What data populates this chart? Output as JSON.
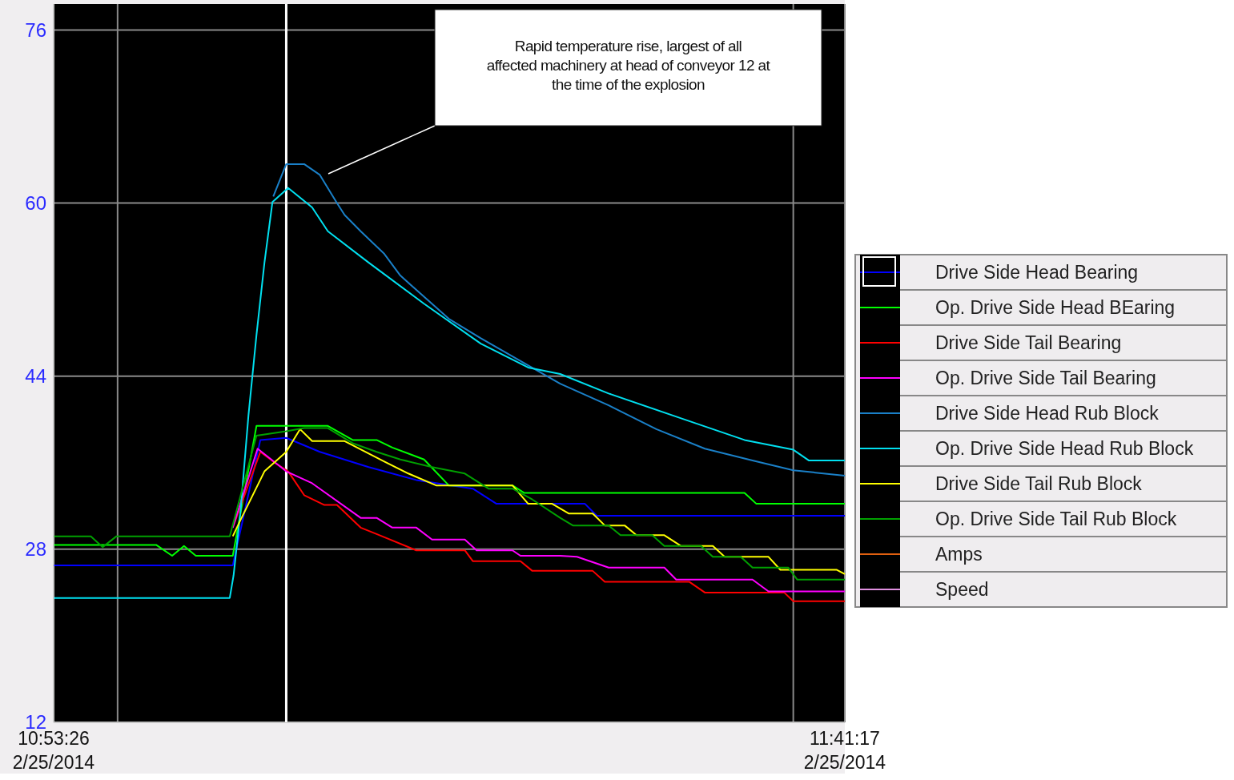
{
  "chart_data": {
    "type": "line",
    "annotations": [
      "Rapid temperature rise, largest of all affected machinery at head of conveyor 12 at the time of the explosion"
    ],
    "xlim": [
      "2014-02-25T10:53:26",
      "2014-02-25T11:41:17"
    ],
    "xticks": [
      {
        "value": "2014-02-25T10:53:26",
        "label": "10:53:26\n2/25/2014"
      },
      {
        "value": "2014-02-25T10:57:18",
        "label": null
      },
      {
        "value": "2014-02-25T11:38:10",
        "label": null
      },
      {
        "value": "2014-02-25T11:41:17",
        "label": "11:41:17\n2/25/2014"
      }
    ],
    "ylim": [
      12,
      78.4
    ],
    "yticks": [
      12,
      28,
      44,
      60,
      76
    ],
    "grid": true,
    "legend": "right",
    "line_style": "solid",
    "marker": "none",
    "ref_lines": [
      {
        "axis": "x",
        "value": "2014-02-25T11:07:30",
        "label": null,
        "color": "#ffffff"
      }
    ],
    "series": [
      {
        "name": "Drive Side Head Bearing",
        "color": "#0000ff",
        "x": [
          "2014-02-25T10:53:26",
          "2014-02-25T11:04:16",
          "2014-02-25T11:05:56",
          "2014-02-25T11:07:30",
          "2014-02-25T11:09:32",
          "2014-02-25T11:12:29",
          "2014-02-25T11:15:22",
          "2014-02-25T11:18:47",
          "2014-02-25T11:20:13",
          "2014-02-25T11:25:34",
          "2014-02-25T11:26:17",
          "2014-02-25T11:41:17"
        ],
        "values": [
          26.5,
          26.5,
          38.1,
          38.3,
          37.0,
          35.6,
          34.4,
          33.6,
          32.2,
          32.2,
          31.1,
          31.1
        ]
      },
      {
        "name": "Op. Drive Side Head BEaring",
        "color": "#00ff00",
        "x": [
          "2014-02-25T10:53:26",
          "2014-02-25T10:59:38",
          "2014-02-25T11:00:36",
          "2014-02-25T11:01:19",
          "2014-02-25T11:02:02",
          "2014-02-25T11:04:16",
          "2014-02-25T11:05:42",
          "2014-02-25T11:10:01",
          "2014-02-25T11:11:31",
          "2014-02-25T11:12:58",
          "2014-02-25T11:13:55",
          "2014-02-25T11:15:50",
          "2014-02-25T11:17:20",
          "2014-02-25T11:21:11",
          "2014-02-25T11:21:54",
          "2014-02-25T11:35:13",
          "2014-02-25T11:35:56",
          "2014-02-25T11:41:17"
        ],
        "values": [
          28.4,
          28.4,
          27.4,
          28.3,
          27.4,
          27.4,
          39.4,
          39.4,
          38.1,
          38.1,
          37.4,
          36.3,
          33.9,
          33.9,
          33.2,
          33.2,
          32.2,
          32.2
        ]
      },
      {
        "name": "Drive Side Tail Bearing",
        "color": "#ff0000",
        "x": [
          "2014-02-25T11:04:16",
          "2014-02-25T11:05:56",
          "2014-02-25T11:06:54",
          "2014-02-25T11:07:37",
          "2014-02-25T11:08:35",
          "2014-02-25T11:09:47",
          "2014-02-25T11:10:34",
          "2014-02-25T11:12:00",
          "2014-02-25T11:12:58",
          "2014-02-25T11:15:22",
          "2014-02-25T11:18:18",
          "2014-02-25T11:18:47",
          "2014-02-25T11:21:40",
          "2014-02-25T11:22:23",
          "2014-02-25T11:26:02",
          "2014-02-25T11:26:46",
          "2014-02-25T11:31:52",
          "2014-02-25T11:32:49",
          "2014-02-25T11:37:37",
          "2014-02-25T11:38:10",
          "2014-02-25T11:41:17"
        ],
        "values": [
          30.0,
          37.0,
          35.9,
          35.2,
          33.0,
          32.1,
          32.1,
          30.0,
          29.4,
          27.9,
          27.9,
          26.9,
          26.9,
          26.0,
          26.0,
          25.0,
          25.0,
          24.0,
          24.0,
          23.2,
          23.2
        ]
      },
      {
        "name": "Op. Drive Side Tail Bearing",
        "color": "#ff00ff",
        "x": [
          "2014-02-25T11:04:16",
          "2014-02-25T11:05:46",
          "2014-02-25T11:07:30",
          "2014-02-25T11:09:04",
          "2014-02-25T11:12:00",
          "2014-02-25T11:12:58",
          "2014-02-25T11:13:55",
          "2014-02-25T11:15:22",
          "2014-02-25T11:16:19",
          "2014-02-25T11:18:18",
          "2014-02-25T11:19:01",
          "2014-02-25T11:21:11",
          "2014-02-25T11:21:40",
          "2014-02-25T11:24:04",
          "2014-02-25T11:25:05",
          "2014-02-25T11:27:00",
          "2014-02-25T11:30:22",
          "2014-02-25T11:31:05",
          "2014-02-25T11:35:42",
          "2014-02-25T11:36:40",
          "2014-02-25T11:41:17"
        ],
        "values": [
          30.0,
          37.3,
          35.2,
          34.1,
          30.9,
          30.9,
          30.0,
          30.0,
          28.9,
          28.9,
          27.9,
          27.9,
          27.4,
          27.4,
          27.3,
          26.3,
          26.3,
          25.2,
          25.2,
          24.1,
          24.1
        ]
      },
      {
        "name": "Drive Side Head Rub Block",
        "color": "#1a80c8",
        "x": [
          "2014-02-25T11:06:43",
          "2014-02-25T11:07:30",
          "2014-02-25T11:08:35",
          "2014-02-25T11:09:32",
          "2014-02-25T11:10:34",
          "2014-02-25T11:11:02",
          "2014-02-25T11:12:00",
          "2014-02-25T11:13:26",
          "2014-02-25T11:14:24",
          "2014-02-25T11:17:20",
          "2014-02-25T11:19:16",
          "2014-02-25T11:24:04",
          "2014-02-25T11:27:00",
          "2014-02-25T11:29:53",
          "2014-02-25T11:32:49",
          "2014-02-25T11:35:42",
          "2014-02-25T11:38:10",
          "2014-02-25T11:41:17"
        ],
        "values": [
          60.6,
          63.6,
          63.6,
          62.6,
          60.0,
          58.9,
          57.4,
          55.3,
          53.3,
          49.3,
          47.5,
          43.3,
          41.3,
          39.1,
          37.3,
          36.2,
          35.3,
          34.8
        ]
      },
      {
        "name": "Op. Drive Side Head Rub Block",
        "color": "#00e0f0",
        "x": [
          "2014-02-25T10:53:26",
          "2014-02-25T11:04:05",
          "2014-02-25T11:04:19",
          "2014-02-25T11:04:44",
          "2014-02-25T11:05:13",
          "2014-02-25T11:05:42",
          "2014-02-25T11:06:11",
          "2014-02-25T11:06:40",
          "2014-02-25T11:07:37",
          "2014-02-25T11:09:04",
          "2014-02-25T11:10:01",
          "2014-02-25T11:12:29",
          "2014-02-25T11:15:50",
          "2014-02-25T11:19:16",
          "2014-02-25T11:22:08",
          "2014-02-25T11:24:04",
          "2014-02-25T11:27:00",
          "2014-02-25T11:31:23",
          "2014-02-25T11:35:13",
          "2014-02-25T11:38:10",
          "2014-02-25T11:39:07",
          "2014-02-25T11:41:17"
        ],
        "values": [
          23.5,
          23.5,
          25.6,
          31.5,
          40.4,
          47.8,
          54.5,
          60.1,
          61.4,
          59.6,
          57.4,
          54.5,
          50.7,
          47.0,
          44.8,
          44.2,
          42.4,
          40.1,
          38.1,
          37.2,
          36.2,
          36.2
        ]
      },
      {
        "name": "Drive Side Tail Rub Block",
        "color": "#ffff00",
        "x": [
          "2014-02-25T11:04:16",
          "2014-02-25T11:04:44",
          "2014-02-25T11:06:11",
          "2014-02-25T11:07:30",
          "2014-02-25T11:08:20",
          "2014-02-25T11:09:04",
          "2014-02-25T11:11:02",
          "2014-02-25T11:13:26",
          "2014-02-25T11:14:53",
          "2014-02-25T11:16:34",
          "2014-02-25T11:21:11",
          "2014-02-25T11:22:08",
          "2014-02-25T11:23:35",
          "2014-02-25T11:24:36",
          "2014-02-25T11:26:02",
          "2014-02-25T11:26:46",
          "2014-02-25T11:27:58",
          "2014-02-25T11:28:41",
          "2014-02-25T11:30:22",
          "2014-02-25T11:31:23",
          "2014-02-25T11:33:18",
          "2014-02-25T11:34:01",
          "2014-02-25T11:36:40",
          "2014-02-25T11:37:23",
          "2014-02-25T11:40:48",
          "2014-02-25T11:41:17"
        ],
        "values": [
          29.2,
          30.7,
          35.2,
          37.0,
          39.1,
          38.0,
          38.0,
          36.1,
          35.0,
          33.9,
          33.9,
          32.2,
          32.2,
          31.3,
          31.3,
          30.2,
          30.2,
          29.3,
          29.3,
          28.3,
          28.3,
          27.3,
          27.3,
          26.1,
          26.1,
          25.7
        ]
      },
      {
        "name": "Op. Drive Side Tail Rub Block",
        "color": "#00a000",
        "x": [
          "2014-02-25T10:53:26",
          "2014-02-25T10:55:41",
          "2014-02-25T10:56:24",
          "2014-02-25T10:57:14",
          "2014-02-25T11:04:05",
          "2014-02-25T11:05:42",
          "2014-02-25T11:07:30",
          "2014-02-25T11:08:35",
          "2014-02-25T11:10:01",
          "2014-02-25T11:11:31",
          "2014-02-25T11:12:58",
          "2014-02-25T11:14:24",
          "2014-02-25T11:16:19",
          "2014-02-25T11:18:18",
          "2014-02-25T11:19:44",
          "2014-02-25T11:21:11",
          "2014-02-25T11:22:23",
          "2014-02-25T11:24:04",
          "2014-02-25T11:24:50",
          "2014-02-25T11:27:00",
          "2014-02-25T11:27:43",
          "2014-02-25T11:29:38",
          "2014-02-25T11:30:22",
          "2014-02-25T11:32:35",
          "2014-02-25T11:33:18",
          "2014-02-25T11:34:59",
          "2014-02-25T11:35:42",
          "2014-02-25T11:37:52",
          "2014-02-25T11:38:24",
          "2014-02-25T11:41:17"
        ],
        "values": [
          29.2,
          29.2,
          28.2,
          29.2,
          29.2,
          38.5,
          38.9,
          39.2,
          39.2,
          37.8,
          37.0,
          36.3,
          35.6,
          35.0,
          33.6,
          33.6,
          32.6,
          30.9,
          30.2,
          30.2,
          29.3,
          29.3,
          28.3,
          28.3,
          27.3,
          27.3,
          26.3,
          26.3,
          25.2,
          25.2
        ]
      },
      {
        "name": "Amps",
        "color": "#e06010"
      },
      {
        "name": "Speed",
        "color": "#e090e0"
      }
    ]
  }
}
